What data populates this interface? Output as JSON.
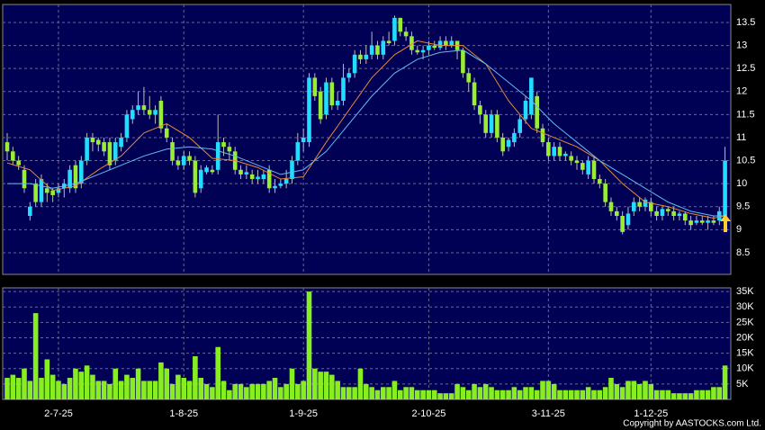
{
  "chart_data": [
    {
      "type": "candlestick",
      "categories": [
        null,
        null,
        null,
        null,
        null,
        null,
        null,
        null,
        null,
        "2-7-25",
        null,
        null,
        null,
        null,
        null,
        null,
        null,
        null,
        null,
        null,
        null,
        null,
        null,
        null,
        null,
        null,
        null,
        null,
        null,
        null,
        null,
        "1-8-25",
        null,
        null,
        null,
        null,
        null,
        null,
        null,
        null,
        null,
        null,
        null,
        null,
        null,
        null,
        null,
        null,
        null,
        null,
        null,
        null,
        "1-9-25",
        null,
        null,
        null,
        null,
        null,
        null,
        null,
        null,
        null,
        null,
        null,
        null,
        null,
        null,
        null,
        null,
        null,
        null,
        null,
        null,
        null,
        "2-10-25",
        null,
        null,
        null,
        null,
        null,
        null,
        null,
        null,
        null,
        null,
        null,
        null,
        null,
        null,
        null,
        null,
        null,
        null,
        null,
        null,
        "3-11-25",
        null,
        null,
        null,
        null,
        null,
        null,
        null,
        null,
        null,
        null,
        null,
        null,
        null,
        null,
        null,
        null,
        null,
        "1-12-25",
        null,
        null,
        null,
        null,
        null,
        null,
        null,
        null,
        null,
        null,
        null,
        null,
        null
      ],
      "open": [
        10.9,
        10.7,
        10.5,
        10.3,
        9.3,
        10.0,
        9.6,
        9.9,
        9.85,
        9.8,
        9.9,
        9.9,
        10.4,
        10.0,
        10.5,
        11.0,
        10.95,
        10.9,
        10.9,
        10.5,
        10.8,
        11.0,
        11.4,
        11.6,
        11.7,
        11.6,
        11.5,
        11.8,
        11.2,
        10.9,
        10.5,
        10.4,
        10.6,
        10.5,
        9.9,
        10.25,
        10.3,
        10.3,
        10.9,
        10.8,
        10.7,
        10.3,
        10.2,
        10.2,
        10.1,
        10.1,
        10.3,
        9.9,
        9.95,
        10.0,
        10.1,
        10.5,
        10.9,
        10.9,
        12.3,
        12.0,
        11.5,
        12.2,
        11.7,
        11.8,
        12.3,
        12.4,
        12.8,
        12.7,
        12.8,
        13.0,
        12.8,
        13.1,
        13.1,
        13.6,
        13.3,
        13.2,
        12.9,
        12.85,
        12.9,
        13.0,
        12.95,
        13.1,
        13.0,
        13.1,
        12.9,
        12.4,
        12.2,
        11.7,
        11.5,
        11.1,
        11.5,
        11.0,
        10.8,
        10.9,
        11.1,
        11.4,
        11.5,
        11.9,
        11.2,
        10.9,
        10.6,
        10.8,
        10.6,
        10.6,
        10.5,
        10.45,
        10.2,
        10.5,
        10.1,
        10.0,
        9.6,
        9.4,
        9.3,
        9.1,
        9.4,
        9.6,
        9.5,
        9.6,
        9.4,
        9.3,
        9.45,
        9.4,
        9.3,
        9.35,
        9.2,
        9.15,
        9.2,
        9.15,
        9.2,
        9.2,
        9.3
      ],
      "high": [
        11.1,
        10.8,
        10.6,
        10.4,
        9.6,
        10.1,
        10.2,
        10.0,
        9.9,
        10.0,
        10.1,
        10.4,
        10.5,
        10.6,
        11.1,
        11.1,
        11.0,
        11.0,
        11.0,
        11.0,
        11.1,
        11.6,
        11.7,
        12.0,
        12.1,
        11.9,
        11.7,
        11.9,
        11.3,
        11.0,
        10.6,
        10.7,
        10.7,
        10.6,
        10.4,
        10.4,
        10.4,
        11.5,
        11.0,
        10.9,
        10.8,
        10.4,
        10.4,
        10.3,
        10.3,
        10.3,
        10.4,
        10.1,
        10.1,
        10.3,
        10.6,
        11.1,
        11.2,
        12.4,
        12.4,
        12.1,
        12.3,
        12.3,
        12.0,
        12.6,
        12.5,
        12.9,
        12.9,
        13.0,
        13.3,
        13.1,
        13.2,
        13.3,
        13.65,
        13.6,
        13.4,
        13.3,
        13.0,
        13.0,
        13.1,
        13.1,
        13.2,
        13.2,
        13.2,
        13.1,
        12.95,
        12.5,
        12.3,
        11.8,
        11.6,
        11.6,
        11.6,
        11.1,
        11.0,
        11.2,
        11.5,
        11.9,
        12.3,
        12.0,
        11.3,
        11.0,
        10.9,
        10.9,
        10.7,
        10.7,
        10.6,
        10.5,
        10.6,
        10.6,
        10.2,
        10.1,
        9.7,
        9.5,
        9.4,
        9.5,
        9.7,
        9.7,
        9.7,
        9.7,
        9.5,
        9.5,
        9.5,
        9.5,
        9.4,
        9.4,
        9.3,
        9.3,
        9.3,
        9.3,
        9.3,
        9.5,
        10.8
      ],
      "low": [
        10.5,
        10.4,
        10.3,
        9.8,
        9.2,
        9.5,
        9.5,
        9.6,
        9.6,
        9.7,
        9.7,
        9.8,
        9.8,
        9.9,
        10.4,
        10.7,
        10.7,
        10.6,
        10.3,
        10.4,
        10.7,
        10.9,
        11.3,
        11.5,
        11.5,
        11.4,
        11.3,
        11.1,
        10.9,
        10.4,
        10.3,
        10.3,
        10.4,
        9.7,
        9.8,
        10.2,
        10.2,
        10.2,
        10.6,
        10.5,
        10.2,
        10.1,
        10.1,
        10.0,
        10.0,
        10.0,
        9.8,
        9.8,
        9.9,
        9.9,
        10.0,
        10.4,
        10.7,
        10.8,
        11.8,
        11.3,
        11.4,
        11.6,
        11.6,
        11.7,
        12.2,
        12.3,
        12.6,
        12.6,
        12.7,
        12.7,
        12.7,
        13.0,
        13.0,
        13.2,
        13.1,
        12.8,
        12.8,
        12.7,
        12.8,
        12.9,
        12.9,
        12.9,
        12.95,
        12.7,
        12.3,
        12.0,
        11.6,
        11.3,
        11.0,
        11.0,
        10.9,
        10.6,
        10.7,
        10.8,
        11.0,
        11.3,
        11.4,
        11.1,
        10.8,
        10.5,
        10.5,
        10.5,
        10.5,
        10.4,
        10.3,
        10.2,
        10.1,
        10.0,
        9.9,
        9.5,
        9.3,
        9.2,
        8.9,
        9.0,
        9.3,
        9.4,
        9.4,
        9.3,
        9.2,
        9.2,
        9.3,
        9.2,
        9.2,
        9.1,
        9.0,
        9.1,
        9.1,
        9.0,
        9.1,
        9.1,
        9.3
      ],
      "close": [
        10.7,
        10.5,
        10.4,
        9.9,
        9.5,
        9.6,
        10.1,
        9.8,
        9.75,
        9.9,
        10.0,
        10.3,
        9.9,
        10.5,
        11.0,
        10.9,
        10.85,
        10.7,
        10.4,
        10.9,
        11.0,
        11.5,
        11.6,
        11.7,
        11.6,
        11.5,
        11.6,
        11.2,
        11.0,
        10.5,
        10.4,
        10.6,
        10.5,
        9.8,
        10.3,
        10.35,
        10.25,
        10.9,
        10.8,
        10.7,
        10.3,
        10.2,
        10.25,
        10.1,
        10.15,
        10.2,
        9.9,
        9.95,
        10.0,
        10.1,
        10.5,
        10.9,
        11.0,
        12.3,
        11.9,
        11.4,
        12.2,
        11.7,
        11.8,
        12.3,
        12.4,
        12.8,
        12.7,
        12.8,
        13.0,
        12.8,
        13.1,
        13.05,
        13.6,
        13.3,
        13.2,
        12.9,
        12.85,
        12.9,
        13.0,
        12.95,
        13.1,
        13.0,
        13.1,
        12.9,
        12.4,
        12.2,
        11.7,
        11.5,
        11.1,
        11.5,
        11.0,
        10.7,
        10.95,
        11.1,
        11.4,
        11.8,
        12.3,
        11.2,
        10.9,
        10.6,
        10.8,
        10.6,
        10.65,
        10.5,
        10.45,
        10.3,
        10.5,
        10.1,
        10.0,
        9.6,
        9.4,
        9.3,
        8.95,
        9.35,
        9.6,
        9.5,
        9.65,
        9.4,
        9.3,
        9.45,
        9.4,
        9.3,
        9.35,
        9.2,
        9.1,
        9.2,
        9.15,
        9.2,
        9.15,
        9.4,
        10.5
      ],
      "up_color": "#22ddff",
      "down_color": "#99ee33",
      "lines": [
        {
          "color": "#e8883a",
          "x": [
            0,
            4,
            8,
            12,
            16,
            20,
            24,
            28,
            32,
            36,
            40,
            44,
            48,
            52,
            56,
            60,
            64,
            68,
            72,
            76,
            80,
            84,
            88,
            92,
            96,
            100,
            104,
            108,
            112,
            116,
            120,
            124,
            126
          ],
          "values": [
            10.45,
            10.3,
            9.85,
            9.95,
            10.3,
            10.6,
            11.1,
            11.3,
            11.0,
            10.55,
            10.5,
            10.35,
            10.1,
            10.15,
            10.9,
            11.6,
            12.3,
            12.8,
            13.1,
            13.0,
            13.0,
            12.6,
            11.8,
            11.2,
            11.0,
            10.8,
            10.5,
            10.0,
            9.6,
            9.5,
            9.35,
            9.25,
            9.3
          ]
        },
        {
          "color": "#66bbee",
          "x": [
            0,
            4,
            8,
            12,
            16,
            20,
            24,
            28,
            32,
            36,
            40,
            44,
            48,
            52,
            56,
            60,
            64,
            68,
            72,
            76,
            80,
            84,
            88,
            92,
            96,
            100,
            104,
            108,
            112,
            116,
            120,
            124,
            126
          ],
          "values": [
            10.0,
            10.0,
            9.9,
            10.0,
            10.2,
            10.4,
            10.6,
            10.75,
            10.8,
            10.75,
            10.6,
            10.4,
            10.2,
            10.3,
            10.7,
            11.3,
            11.9,
            12.4,
            12.7,
            12.85,
            12.9,
            12.6,
            12.2,
            11.8,
            11.3,
            10.9,
            10.5,
            10.2,
            9.9,
            9.6,
            9.4,
            9.3,
            9.3
          ]
        }
      ],
      "ylim": [
        8.03,
        13.89
      ],
      "yticks": [
        8.5,
        9,
        9.5,
        10,
        10.5,
        11,
        11.5,
        12,
        12.5,
        13,
        13.5
      ],
      "grid": true
    },
    {
      "type": "bar",
      "values": [
        7000,
        8000,
        7000,
        10000,
        6000,
        28000,
        7000,
        13000,
        8000,
        6000,
        5000,
        7000,
        10000,
        9000,
        11000,
        8000,
        6000,
        6000,
        5000,
        10000,
        6000,
        8000,
        7000,
        10000,
        6000,
        6000,
        6000,
        12000,
        10000,
        5000,
        8000,
        7000,
        6000,
        14000,
        7000,
        5000,
        4000,
        17000,
        6000,
        3000,
        5000,
        5000,
        4000,
        5000,
        5000,
        5000,
        6000,
        7000,
        4000,
        5000,
        10000,
        5000,
        6000,
        35000,
        10000,
        9000,
        9000,
        8000,
        6000,
        4000,
        4000,
        4000,
        10000,
        5000,
        4000,
        3000,
        4000,
        4000,
        6000,
        3000,
        4000,
        4000,
        3000,
        3000,
        3000,
        3000,
        2000,
        2000,
        2000,
        5000,
        4000,
        3000,
        5000,
        4000,
        5000,
        4000,
        3000,
        3000,
        3000,
        4000,
        3000,
        4000,
        4000,
        3000,
        6000,
        6000,
        5000,
        3000,
        3000,
        3000,
        3000,
        3000,
        4000,
        3000,
        3000,
        4000,
        7000,
        5000,
        4000,
        6000,
        6000,
        5000,
        6000,
        5000,
        3000,
        3000,
        3000,
        2000,
        2000,
        2000,
        2000,
        3000,
        3000,
        3000,
        4000,
        4000,
        11000
      ],
      "color": "#88ee22",
      "ylim": [
        0,
        36200
      ],
      "yticks": [
        {
          "value": 5000,
          "label": "5K"
        },
        {
          "value": 10000,
          "label": "10K"
        },
        {
          "value": 15000,
          "label": "15K"
        },
        {
          "value": 20000,
          "label": "20K"
        },
        {
          "value": 25000,
          "label": "25K"
        },
        {
          "value": 30000,
          "label": "30K"
        },
        {
          "value": 35000,
          "label": "35K"
        }
      ],
      "grid": true
    }
  ],
  "footer": "Copyright by AASTOCKS.com Ltd."
}
